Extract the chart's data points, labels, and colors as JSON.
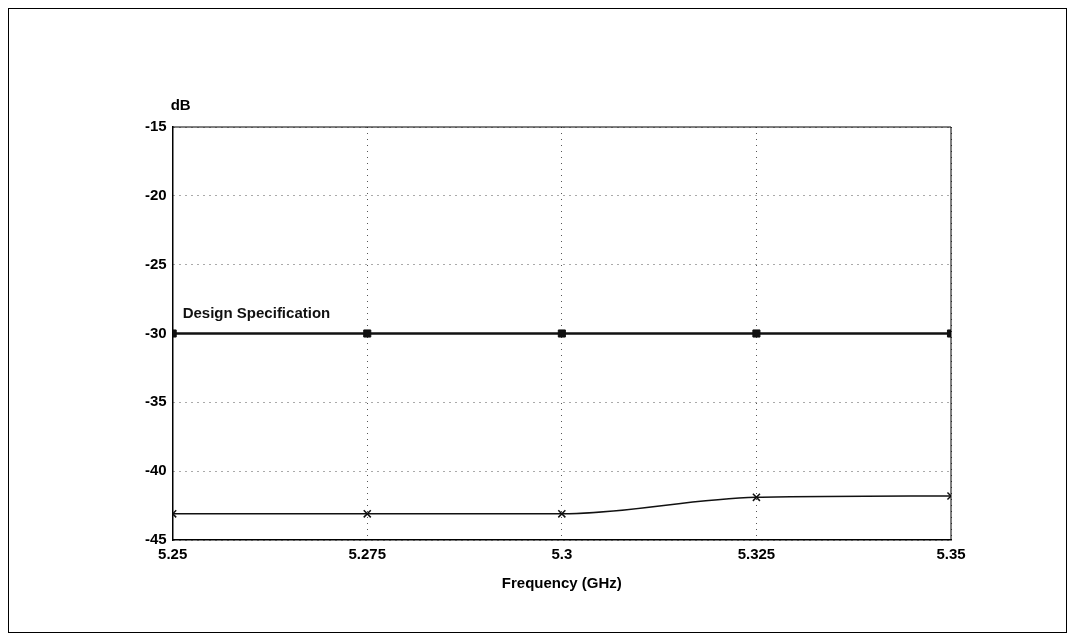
{
  "chart_data": {
    "type": "line",
    "xlabel": "Frequency (GHz)",
    "ylabel": "dB",
    "x": [
      5.25,
      5.275,
      5.3,
      5.325,
      5.35
    ],
    "xlim": [
      5.25,
      5.35
    ],
    "xticks": [
      5.25,
      5.275,
      5.3,
      5.325,
      5.35
    ],
    "ylim": [
      -45,
      -15
    ],
    "yticks": [
      -45,
      -40,
      -35,
      -30,
      -25,
      -20,
      -15
    ],
    "grid": true,
    "legend": false,
    "series": [
      {
        "name": "Design Specification",
        "color": "#111111",
        "values": [
          -30,
          -30,
          -30,
          -30,
          -30
        ],
        "marker": "square"
      },
      {
        "color": "#111111",
        "values": [
          -43.1,
          -43.1,
          -43.1,
          -41.9,
          -41.8
        ],
        "marker": "cross"
      }
    ]
  }
}
